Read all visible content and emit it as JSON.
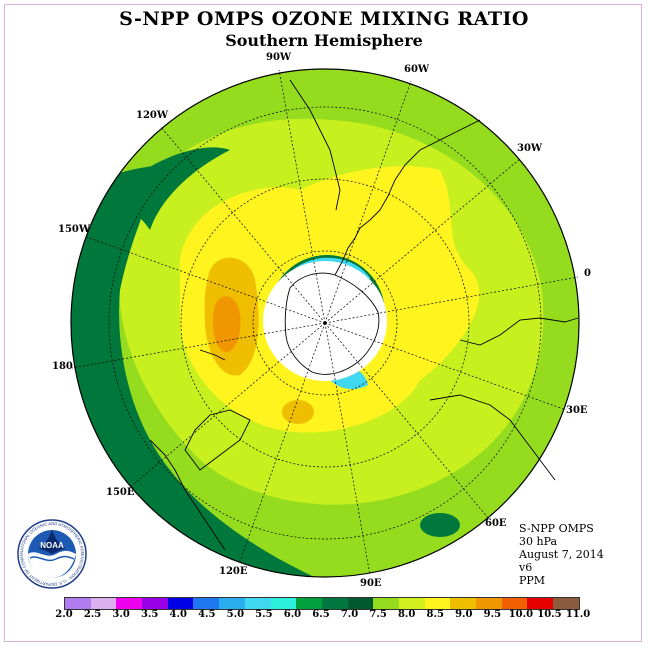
{
  "title": "S-NPP OMPS OZONE MIXING RATIO",
  "subtitle": "Southern Hemisphere",
  "info": {
    "instrument": "S-NPP OMPS",
    "level": "30 hPa",
    "date": "August 7, 2014",
    "version": "v6",
    "units": "PPM"
  },
  "longitude_labels": {
    "w90": "90W",
    "w60": "60W",
    "w30": "30W",
    "e0": "0",
    "e30": "30E",
    "e60": "60E",
    "e90": "90E",
    "e120": "120E",
    "e150": "150E",
    "e180": "180",
    "w150": "150W",
    "w120": "120W"
  },
  "colorbar": {
    "ticks": [
      "2.0",
      "2.5",
      "3.0",
      "3.5",
      "4.0",
      "4.5",
      "5.0",
      "5.5",
      "6.0",
      "6.5",
      "7.0",
      "7.5",
      "8.0",
      "8.5",
      "9.0",
      "9.5",
      "10.0",
      "10.5",
      "11.0"
    ],
    "colors": [
      "#b07cf0",
      "#dcb0f0",
      "#ee00ee",
      "#9a00e8",
      "#0000e6",
      "#1e78f0",
      "#2aaef0",
      "#40d8f0",
      "#2cf0dc",
      "#00a03c",
      "#007840",
      "#005a30",
      "#96dc1e",
      "#d2f01e",
      "#fff41e",
      "#f0be00",
      "#f09600",
      "#f06000",
      "#e60000",
      "#8c5a3c"
    ]
  },
  "logo_text": {
    "center": "NOAA",
    "ring": "NATIONAL OCEANIC AND ATMOSPHERIC ADMINISTRATION · U.S. DEPARTMENT OF COMMERCE"
  }
}
